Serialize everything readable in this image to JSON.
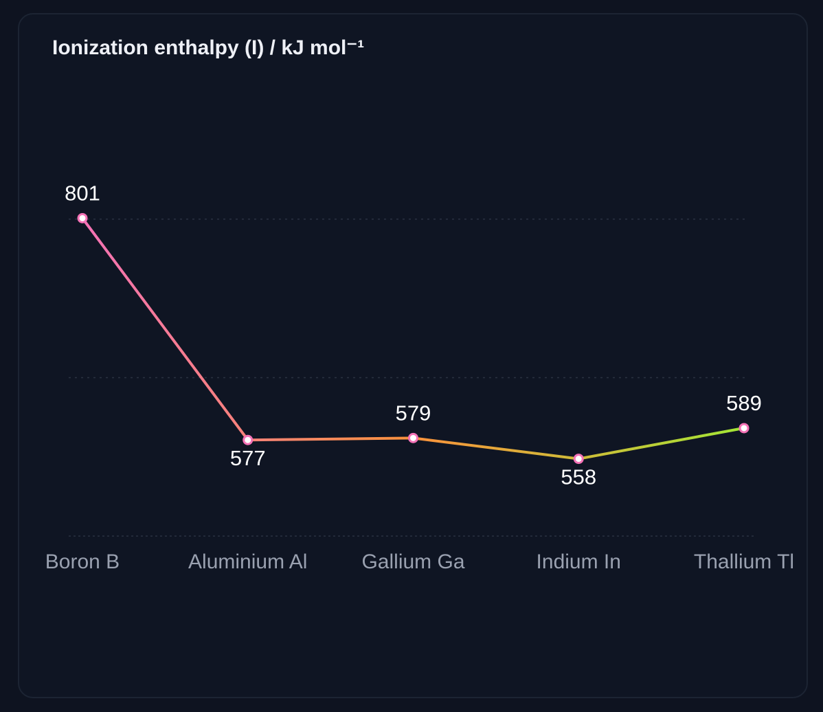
{
  "chart_data": {
    "type": "line",
    "title": "Ionization enthalpy (I) / kJ mol⁻¹",
    "categories": [
      "Boron B",
      "Aluminium Al",
      "Gallium Ga",
      "Indium In",
      "Thallium Tl"
    ],
    "values": [
      801,
      577,
      579,
      558,
      589
    ],
    "data_labels": [
      "801",
      "577",
      "579",
      "558",
      "589"
    ],
    "ylim": [
      480,
      920
    ],
    "gridlines": [
      640,
      800
    ],
    "grid": true,
    "legend": "none",
    "colors": {
      "line_gradient": [
        "#f472b6",
        "#fb923c",
        "#a3e635"
      ],
      "point_stroke": "#f472b6",
      "point_fill": "#ffffff",
      "grid": "#2a3242",
      "tick_label": "#9aa1b0",
      "value_label": "#ffffff"
    }
  }
}
